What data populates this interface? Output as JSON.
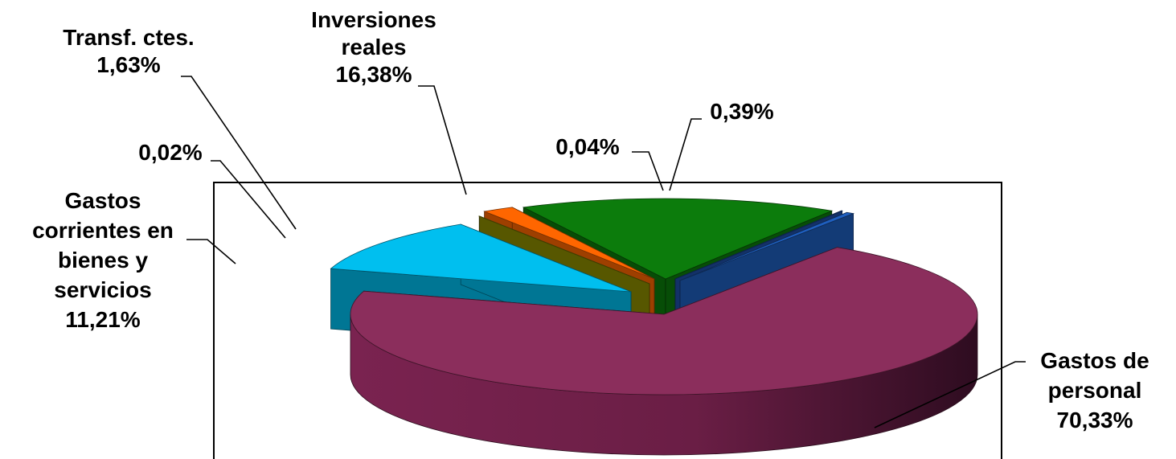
{
  "chart_data": {
    "type": "pie",
    "style": "3d-exploded",
    "title": "",
    "slices": [
      {
        "key": "gastos-personal",
        "label": [
          "Gastos de",
          "personal",
          "70,33%"
        ],
        "value": 70.33,
        "color": "#8B2E5C"
      },
      {
        "key": "gastos-corrientes",
        "label": [
          "Gastos",
          "corrientes en",
          "bienes y",
          "servicios",
          "11,21%"
        ],
        "value": 11.21,
        "color": "#00BFEF"
      },
      {
        "key": "slice-002",
        "label": [
          "0,02%"
        ],
        "value": 0.02,
        "color": "#8C8C00"
      },
      {
        "key": "transf-ctes",
        "label": [
          "Transf. ctes.",
          "1,63%"
        ],
        "value": 1.63,
        "color": "#FF6600"
      },
      {
        "key": "inversiones-reales",
        "label": [
          "Inversiones",
          "reales",
          "16,38%"
        ],
        "value": 16.38,
        "color": "#0C7C0C"
      },
      {
        "key": "slice-004",
        "label": [
          "0,04%"
        ],
        "value": 0.04,
        "color": "#1F4FA8"
      },
      {
        "key": "slice-039",
        "label": [
          "0,39%"
        ],
        "value": 0.39,
        "color": "#1F5FBF"
      }
    ]
  }
}
